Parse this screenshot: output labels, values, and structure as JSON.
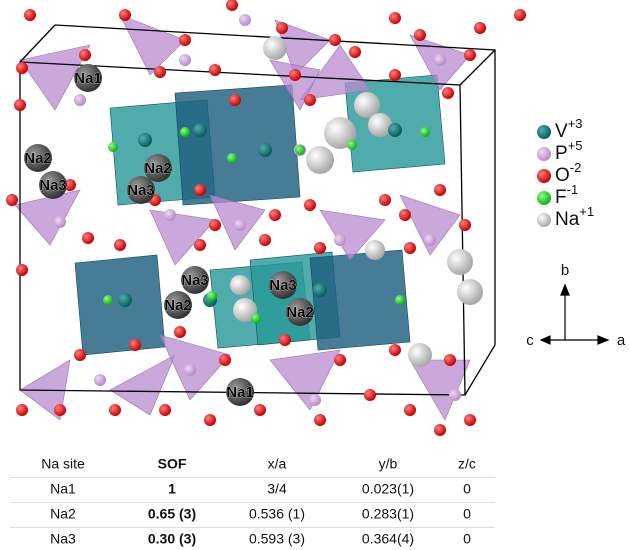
{
  "structure": {
    "labels": [
      "Na1",
      "Na2",
      "Na3",
      "Na2",
      "Na3",
      "Na3",
      "Na2",
      "Na3",
      "Na2",
      "Na1"
    ]
  },
  "legend": [
    {
      "symbol": "V",
      "charge": "+3"
    },
    {
      "symbol": "P",
      "charge": "+5"
    },
    {
      "symbol": "O",
      "charge": "-2"
    },
    {
      "symbol": "F",
      "charge": "-1"
    },
    {
      "symbol": "Na",
      "charge": "+1"
    }
  ],
  "axes": {
    "b": "b",
    "c": "c",
    "a": "a"
  },
  "table": {
    "header": [
      "Na site",
      "SOF",
      "x/a",
      "y/b",
      "z/c"
    ],
    "rows": [
      [
        "Na1",
        "1",
        "3/4",
        "0.023(1)",
        "0"
      ],
      [
        "Na2",
        "0.65 (3)",
        "0.536 (1)",
        "0.283(1)",
        "0"
      ],
      [
        "Na3",
        "0.30 (3)",
        "0.593 (3)",
        "0.364(4)",
        "0"
      ]
    ]
  }
}
